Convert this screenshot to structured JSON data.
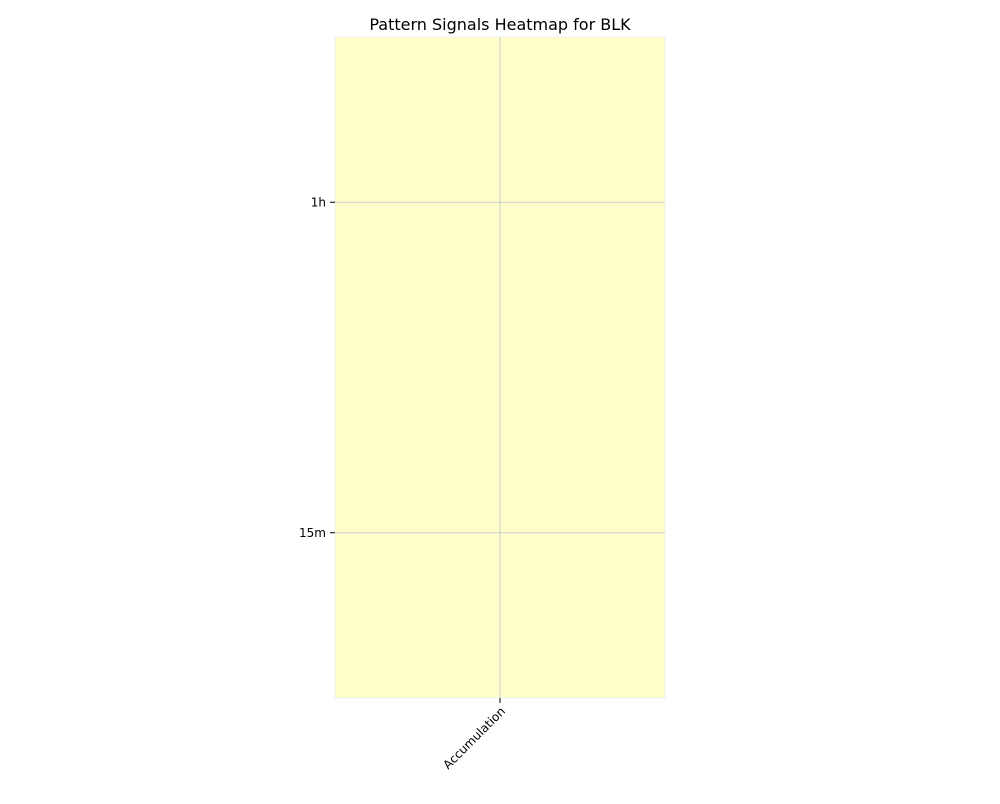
{
  "chart_data": {
    "type": "heatmap",
    "title": "Pattern Signals Heatmap for BLK",
    "xlabel": "",
    "ylabel": "",
    "x_categories": [
      "Accumulation"
    ],
    "y_categories": [
      "1h",
      "15m"
    ],
    "values": [
      [
        1
      ],
      [
        1
      ]
    ],
    "cell_color": "#ffffcc",
    "grid": true,
    "grid_color": "#cccccc",
    "legend": "none"
  }
}
